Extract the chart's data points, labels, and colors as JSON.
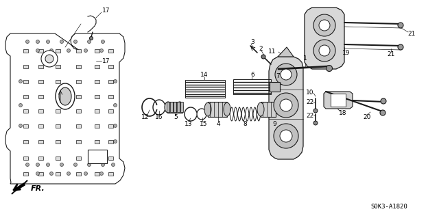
{
  "bg_color": "#ffffff",
  "line_color": "#1a1a1a",
  "fig_width": 6.4,
  "fig_height": 3.19,
  "dpi": 100,
  "diagram_code": "S0K3-A1820",
  "fr_label": "FR."
}
